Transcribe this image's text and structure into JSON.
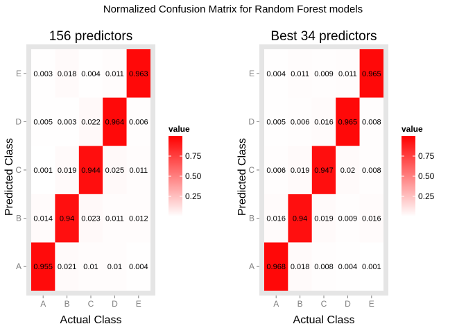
{
  "title": "Normalized Confusion Matrix for Random Forest models",
  "chart_data": [
    {
      "type": "heatmap",
      "title": "156 predictors",
      "xlabel": "Actual Class",
      "ylabel": "Predicted Class",
      "x_categories": [
        "A",
        "B",
        "C",
        "D",
        "E"
      ],
      "y_categories": [
        "A",
        "B",
        "C",
        "D",
        "E"
      ],
      "values_by_predicted": {
        "A": [
          0.955,
          0.021,
          0.01,
          0.01,
          0.004
        ],
        "B": [
          0.014,
          0.94,
          0.023,
          0.011,
          0.012
        ],
        "C": [
          0.001,
          0.019,
          0.944,
          0.025,
          0.011
        ],
        "D": [
          0.005,
          0.003,
          0.022,
          0.964,
          0.006
        ],
        "E": [
          0.003,
          0.018,
          0.004,
          0.011,
          0.963
        ]
      },
      "legend": {
        "title": "value",
        "ticks": [
          "0.75",
          "0.50",
          "0.25"
        ],
        "tick_values": [
          0.75,
          0.5,
          0.25
        ],
        "range": [
          0,
          1
        ],
        "low_color": "#ffffff",
        "high_color": "#ff0000"
      }
    },
    {
      "type": "heatmap",
      "title": "Best 34 predictors",
      "xlabel": "Actual Class",
      "ylabel": "Predicted Class",
      "x_categories": [
        "A",
        "B",
        "C",
        "D",
        "E"
      ],
      "y_categories": [
        "A",
        "B",
        "C",
        "D",
        "E"
      ],
      "values_by_predicted": {
        "A": [
          0.968,
          0.018,
          0.008,
          0.004,
          0.001
        ],
        "B": [
          0.016,
          0.94,
          0.019,
          0.009,
          0.016
        ],
        "C": [
          0.006,
          0.019,
          0.947,
          0.02,
          0.008
        ],
        "D": [
          0.005,
          0.006,
          0.016,
          0.965,
          0.008
        ],
        "E": [
          0.004,
          0.011,
          0.009,
          0.011,
          0.965
        ]
      },
      "legend": {
        "title": "value",
        "ticks": [
          "0.75",
          "0.50",
          "0.25"
        ],
        "tick_values": [
          0.75,
          0.5,
          0.25
        ],
        "range": [
          0,
          1
        ],
        "low_color": "#ffffff",
        "high_color": "#ff0000"
      }
    }
  ]
}
